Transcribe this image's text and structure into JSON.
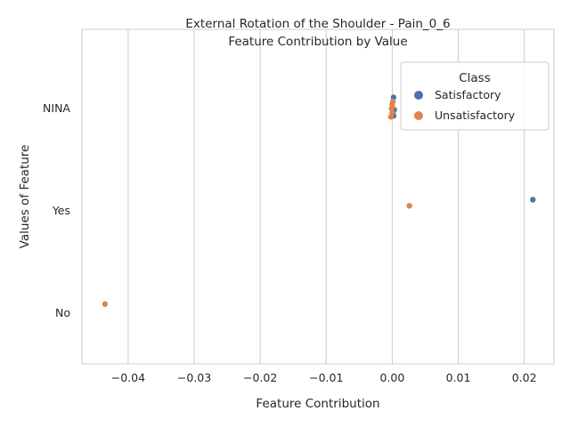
{
  "chart_data": {
    "type": "scatter",
    "title": "External Rotation of the Shoulder - Pain_0_6",
    "subtitle": "Feature Contribution by Value",
    "xlabel": "Feature Contribution",
    "ylabel": "Values of Feature",
    "xlim": [
      -0.047,
      0.0245
    ],
    "x_ticks": [
      "−0.04",
      "−0.03",
      "−0.02",
      "−0.01",
      "0.00",
      "0.01",
      "0.02"
    ],
    "x_tick_values": [
      -0.04,
      -0.03,
      -0.02,
      -0.01,
      0.0,
      0.01,
      0.02
    ],
    "categories": [
      "NINA",
      "Yes",
      "No"
    ],
    "grid": "vertical",
    "legend": {
      "title": "Class",
      "placement": "top-right",
      "entries": [
        "Satisfactory",
        "Unsatisfactory"
      ]
    },
    "series": [
      {
        "name": "Satisfactory",
        "color": "#4c72b0",
        "points": [
          {
            "category": "NINA",
            "x": 0.0002,
            "jitter": -0.1
          },
          {
            "category": "NINA",
            "x": 0.0003,
            "jitter": 0.02
          },
          {
            "category": "NINA",
            "x": 0.0001,
            "jitter": 0.06
          },
          {
            "category": "NINA",
            "x": 0.0002,
            "jitter": 0.08
          },
          {
            "category": "Yes",
            "x": 0.0213,
            "jitter": -0.1
          }
        ]
      },
      {
        "name": "Unsatisfactory",
        "color": "#dd8452",
        "points": [
          {
            "category": "NINA",
            "x": 0.0001,
            "jitter": -0.06
          },
          {
            "category": "NINA",
            "x": 0.0,
            "jitter": -0.03
          },
          {
            "category": "NINA",
            "x": -0.0001,
            "jitter": 0.01
          },
          {
            "category": "NINA",
            "x": 0.0,
            "jitter": 0.05
          },
          {
            "category": "NINA",
            "x": -0.0002,
            "jitter": 0.09
          },
          {
            "category": "Yes",
            "x": 0.0026,
            "jitter": -0.04
          },
          {
            "category": "No",
            "x": -0.0435,
            "jitter": -0.08
          }
        ]
      }
    ]
  }
}
